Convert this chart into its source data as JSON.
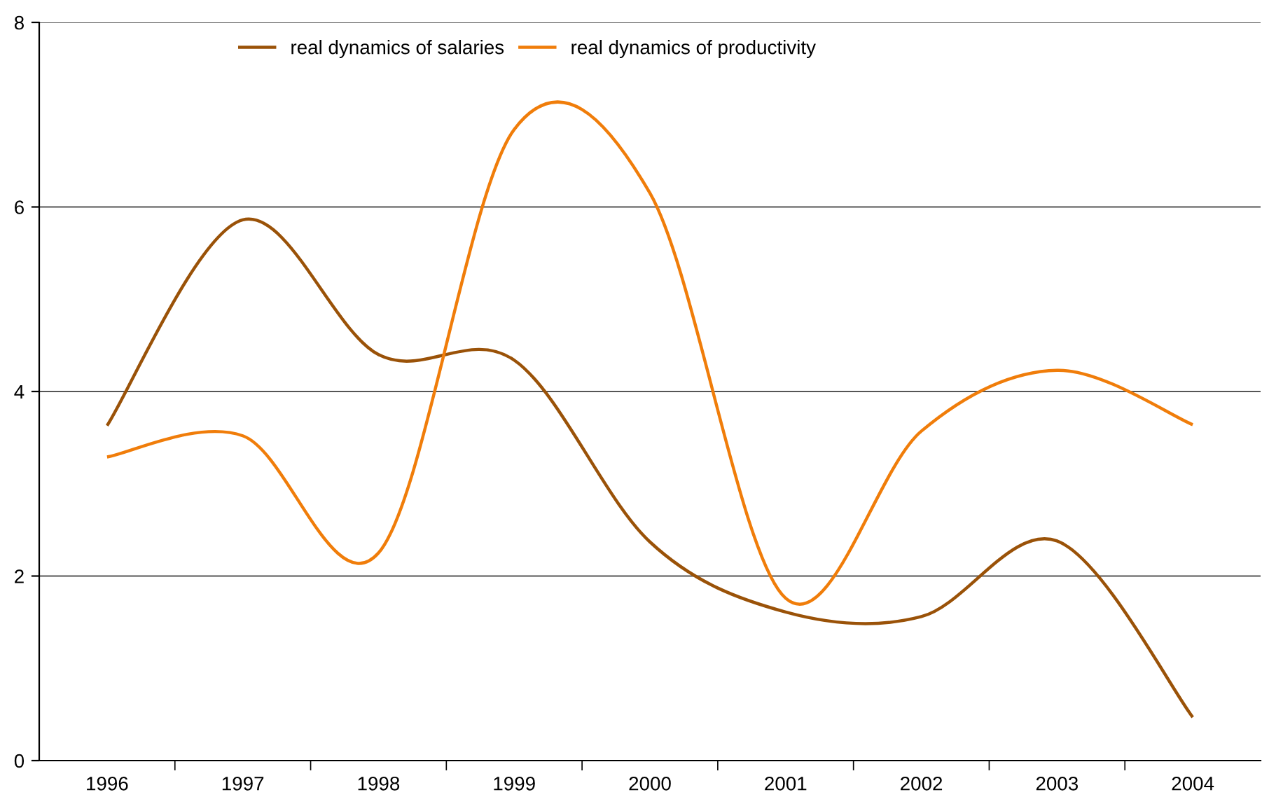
{
  "chart_data": {
    "type": "line",
    "categories": [
      "1996",
      "1997",
      "1998",
      "1999",
      "2000",
      "2001",
      "2002",
      "2003",
      "2004"
    ],
    "series": [
      {
        "name": "real dynamics of salaries",
        "color": "#9a5208",
        "values": [
          3.63,
          5.86,
          4.4,
          4.34,
          2.37,
          1.61,
          1.56,
          2.38,
          0.47
        ]
      },
      {
        "name": "real dynamics of productivity",
        "color": "#f07d0a",
        "values": [
          3.29,
          3.52,
          2.25,
          6.84,
          6.15,
          1.76,
          3.57,
          4.23,
          3.64
        ]
      }
    ],
    "ylim": [
      0,
      8
    ],
    "yticks": [
      0,
      2,
      4,
      6,
      8
    ],
    "grid": "y",
    "legend": "top",
    "marker": "none",
    "line_style": "solid"
  }
}
